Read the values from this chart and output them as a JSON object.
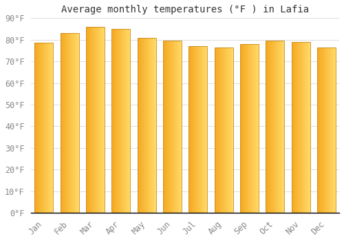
{
  "title": "Average monthly temperatures (°F ) in Lafia",
  "months": [
    "Jan",
    "Feb",
    "Mar",
    "Apr",
    "May",
    "Jun",
    "Jul",
    "Aug",
    "Sep",
    "Oct",
    "Nov",
    "Dec"
  ],
  "values": [
    78.5,
    83.0,
    86.0,
    85.0,
    81.0,
    79.5,
    77.0,
    76.5,
    78.0,
    79.5,
    79.0,
    76.5
  ],
  "ylim": [
    0,
    90
  ],
  "yticks": [
    0,
    10,
    20,
    30,
    40,
    50,
    60,
    70,
    80,
    90
  ],
  "ytick_labels": [
    "0°F",
    "10°F",
    "20°F",
    "30°F",
    "40°F",
    "50°F",
    "60°F",
    "70°F",
    "80°F",
    "90°F"
  ],
  "bar_color_left": "#F5A820",
  "bar_color_right": "#FFD966",
  "bar_color_center": "#FFC040",
  "bar_edge_color": "#C8881A",
  "background_color": "#FFFFFF",
  "grid_color": "#DDDDDD",
  "title_fontsize": 10,
  "tick_fontsize": 8.5,
  "bar_width": 0.72
}
